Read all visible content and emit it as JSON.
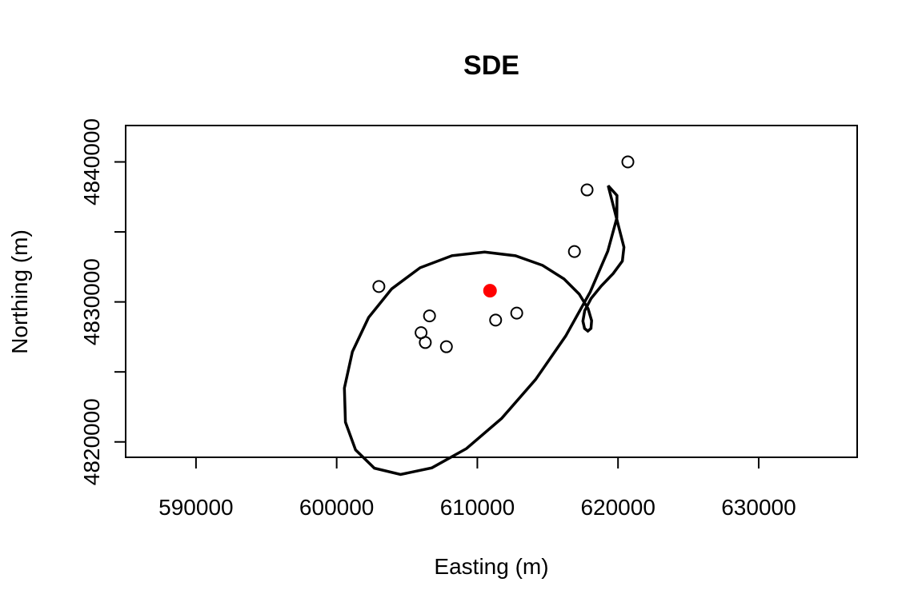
{
  "chart_data": {
    "type": "scatter",
    "title": "SDE",
    "xlabel": "Easting (m)",
    "ylabel": "Northing (m)",
    "xlim": [
      585000,
      637000
    ],
    "ylim": [
      4818900,
      4842600
    ],
    "x_ticks": [
      590000,
      600000,
      610000,
      620000,
      630000
    ],
    "x_tick_labels": [
      "590000",
      "600000",
      "610000",
      "620000",
      "630000"
    ],
    "y_ticks": [
      4820000,
      4825000,
      4830000,
      4835000,
      4840000
    ],
    "y_tick_labels": [
      "4820000",
      "",
      "4830000",
      "",
      "4840000"
    ],
    "grid": false,
    "series": [
      {
        "name": "points",
        "marker": "open-circle",
        "color": "#000000",
        "x": [
          603000,
          606000,
          606300,
          606600,
          607800,
          611300,
          612800,
          616900,
          617800,
          620700
        ],
        "y": [
          4831100,
          4827800,
          4827100,
          4829000,
          4826800,
          4828700,
          4829200,
          4833600,
          4838000,
          4840000
        ]
      },
      {
        "name": "mean center",
        "marker": "filled-circle",
        "color": "#ff0000",
        "x": [
          610900
        ],
        "y": [
          4830800
        ]
      }
    ],
    "ellipse": {
      "name": "standard deviational ellipse",
      "color": "#000000",
      "center": [
        610900,
        4830800
      ],
      "points": [
        [
          619300,
          4838300
        ],
        [
          619927,
          4837599
        ],
        [
          619917,
          4835990
        ],
        [
          619271,
          4833620
        ],
        [
          618029,
          4830717
        ],
        [
          616282,
          4827563
        ],
        [
          614139,
          4824455
        ],
        [
          611735,
          4821689
        ],
        [
          609225,
          4819522
        ],
        [
          606767,
          4818147
        ],
        [
          604535,
          4817672
        ],
        [
          602681,
          4818122
        ],
        [
          601348,
          4819424
        ],
        [
          600620,
          4821410
        ],
        [
          600547,
          4823844
        ],
        [
          601115,
          4826439
        ],
        [
          602265,
          4828883
        ],
        [
          603909,
          4830933
        ],
        [
          605932,
          4832438
        ],
        [
          608200,
          4833300
        ],
        [
          610514,
          4833562
        ],
        [
          612709,
          4833295
        ],
        [
          614635,
          4832609
        ],
        [
          616161,
          4831643
        ],
        [
          617240,
          4830558
        ],
        [
          617871,
          4829516
        ],
        [
          618121,
          4828662
        ],
        [
          618075,
          4828107
        ],
        [
          617858,
          4827917
        ],
        [
          617621,
          4828103
        ],
        [
          617502,
          4828625
        ],
        [
          617632,
          4829381
        ],
        [
          618082,
          4830244
        ],
        [
          618813,
          4831139
        ],
        [
          619653,
          4832024
        ],
        [
          620309,
          4832912
        ],
        [
          620420,
          4833906
        ],
        [
          619300,
          4838300
        ]
      ]
    }
  }
}
